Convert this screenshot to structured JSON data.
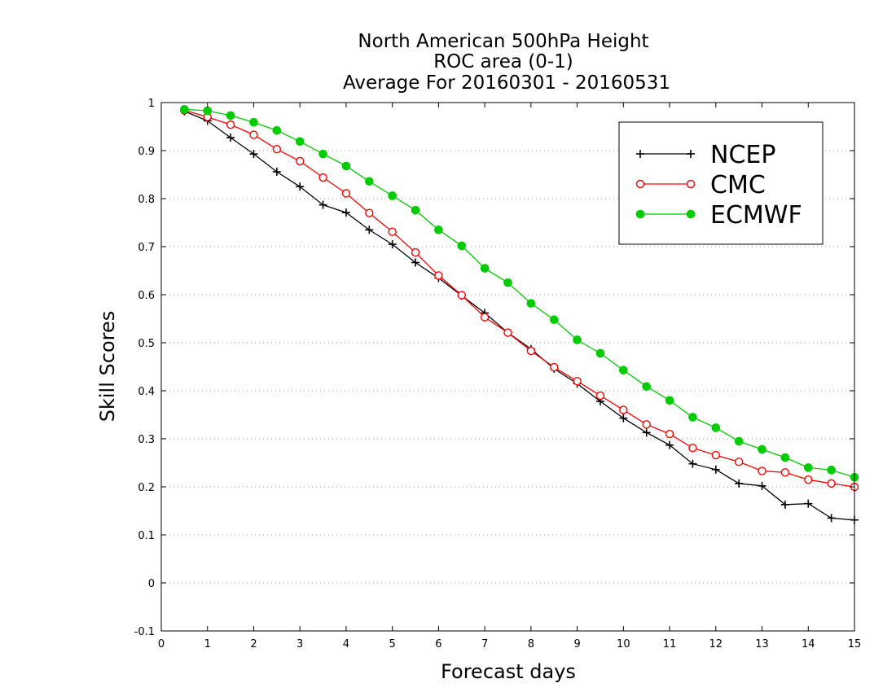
{
  "chart_data": {
    "type": "line",
    "title": [
      "North American 500hPa Height",
      "ROC area (0-1)",
      "Average For 20160301 - 20160531"
    ],
    "xlabel": "Forecast days",
    "ylabel": "Skill Scores",
    "xlim": [
      0,
      15
    ],
    "ylim": [
      -0.1,
      1
    ],
    "xticks": [
      0,
      1,
      2,
      3,
      4,
      5,
      6,
      7,
      8,
      9,
      10,
      11,
      12,
      13,
      14,
      15
    ],
    "yticks": [
      -0.1,
      0,
      0.1,
      0.2,
      0.3,
      0.4,
      0.5,
      0.6,
      0.7,
      0.8,
      0.9,
      1
    ],
    "ytick_labels": [
      "-0.1",
      "0",
      "0.1",
      "0.2",
      "0.3",
      "0.4",
      "0.5",
      "0.6",
      "0.7",
      "0.8",
      "0.9",
      "1"
    ],
    "xtick_labels": [
      "0",
      "1",
      "2",
      "3",
      "4",
      "5",
      "6",
      "7",
      "8",
      "9",
      "10",
      "11",
      "12",
      "13",
      "14",
      "15"
    ],
    "grid": "horizontal dotted",
    "legend_position": "top-right",
    "x": [
      0.5,
      1,
      1.5,
      2,
      2.5,
      3,
      3.5,
      4,
      4.5,
      5,
      5.5,
      6,
      6.5,
      7,
      7.5,
      8,
      8.5,
      9,
      9.5,
      10,
      10.5,
      11,
      11.5,
      12,
      12.5,
      13,
      13.5,
      14,
      14.5,
      15
    ],
    "series": [
      {
        "name": "NCEP",
        "color": "#000000",
        "marker": "plus",
        "values": [
          0.982,
          0.962,
          0.927,
          0.893,
          0.856,
          0.825,
          0.787,
          0.771,
          0.735,
          0.705,
          0.667,
          0.635,
          0.598,
          0.562,
          0.521,
          0.487,
          0.446,
          0.415,
          0.378,
          0.343,
          0.313,
          0.287,
          0.248,
          0.236,
          0.207,
          0.202,
          0.163,
          0.165,
          0.135,
          0.131
        ]
      },
      {
        "name": "CMC",
        "color": "#ff0000",
        "marker": "open-circle",
        "values": [
          0.984,
          0.97,
          0.954,
          0.933,
          0.903,
          0.878,
          0.844,
          0.811,
          0.77,
          0.731,
          0.688,
          0.64,
          0.599,
          0.553,
          0.521,
          0.483,
          0.449,
          0.42,
          0.39,
          0.36,
          0.33,
          0.31,
          0.281,
          0.266,
          0.252,
          0.233,
          0.23,
          0.215,
          0.207,
          0.2
        ]
      },
      {
        "name": "ECMWF",
        "color": "#00cc00",
        "marker": "filled-circle",
        "values": [
          0.986,
          0.983,
          0.973,
          0.959,
          0.942,
          0.919,
          0.893,
          0.868,
          0.836,
          0.806,
          0.776,
          0.735,
          0.702,
          0.655,
          0.625,
          0.582,
          0.548,
          0.506,
          0.478,
          0.443,
          0.409,
          0.38,
          0.345,
          0.323,
          0.295,
          0.278,
          0.261,
          0.24,
          0.235,
          0.22
        ]
      }
    ]
  }
}
